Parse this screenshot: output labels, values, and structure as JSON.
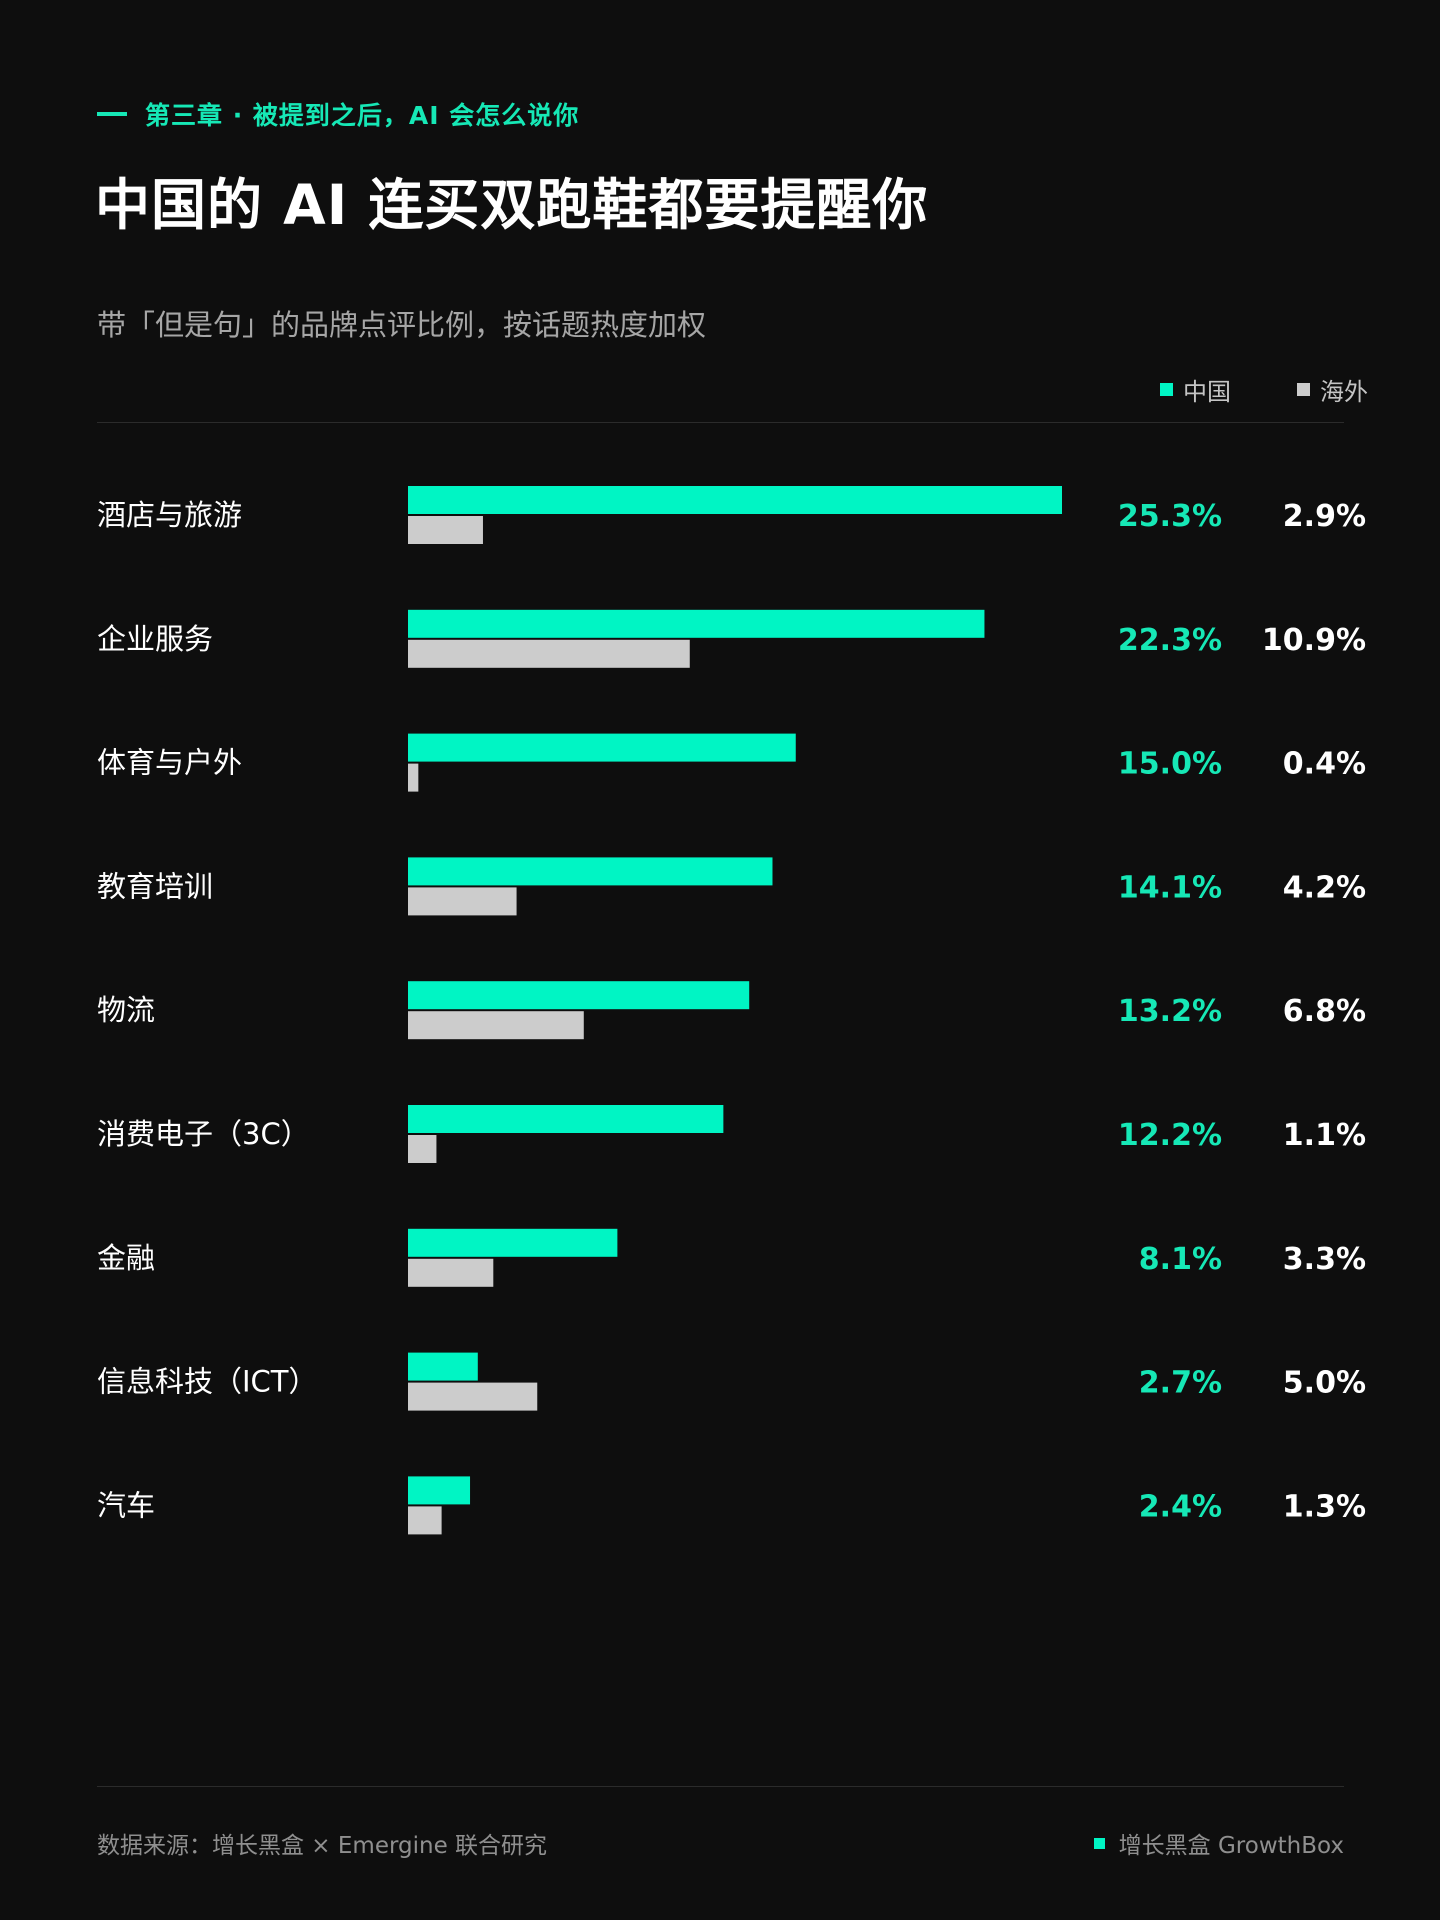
{
  "header": {
    "eyebrow": "第三章 · 被提到之后，AI 会怎么说你",
    "title": "中国的 AI 连买双跑鞋都要提醒你",
    "subtitle": "带「但是句」的品牌点评比例，按话题热度加权"
  },
  "colors": {
    "china": "#00f5c4",
    "overseas": "#cccccc",
    "china_text": "#16e8b6"
  },
  "chart_data": {
    "type": "bar",
    "orientation": "horizontal",
    "unit": "%",
    "categories": [
      "酒店与旅游",
      "企业服务",
      "体育与户外",
      "教育培训",
      "物流",
      "消费电子（3C）",
      "金融",
      "信息科技（ICT）",
      "汽车"
    ],
    "series": [
      {
        "name": "中国",
        "values": [
          25.3,
          22.3,
          15.0,
          14.1,
          13.2,
          12.2,
          8.1,
          2.7,
          2.4
        ],
        "labels": [
          "25.3%",
          "22.3%",
          "15.0%",
          "14.1%",
          "13.2%",
          "12.2%",
          "8.1%",
          "2.7%",
          "2.4%"
        ]
      },
      {
        "name": "海外",
        "values": [
          2.9,
          10.9,
          0.4,
          4.2,
          6.8,
          1.1,
          3.3,
          5.0,
          1.3
        ],
        "labels": [
          "2.9%",
          "10.9%",
          "0.4%",
          "4.2%",
          "6.8%",
          "1.1%",
          "3.3%",
          "5.0%",
          "1.3%"
        ]
      }
    ],
    "xlim": [
      0,
      25.3
    ],
    "legend_position": "top-right",
    "grid": false
  },
  "footer": {
    "source": "数据来源：增长黑盒 × Emergine 联合研究",
    "brand": "增长黑盒 GrowthBox"
  }
}
